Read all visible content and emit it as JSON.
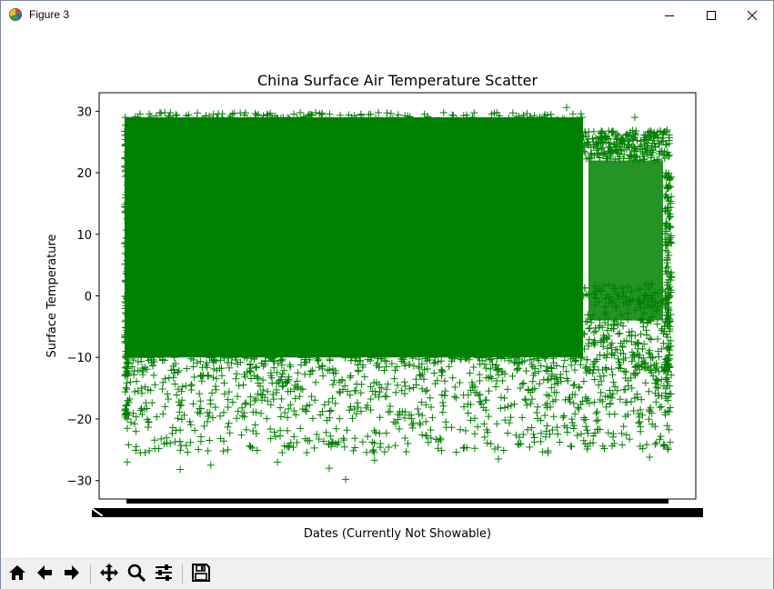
{
  "window": {
    "title": "Figure 3",
    "controls": [
      "minimize",
      "maximize",
      "close"
    ],
    "icons": {
      "app": "matplotlib-figure-icon",
      "minimize": "minimize-icon",
      "maximize": "maximize-icon",
      "close": "close-icon"
    }
  },
  "toolbar": {
    "buttons": [
      {
        "name": "home-button",
        "icon": "home-icon"
      },
      {
        "name": "back-button",
        "icon": "arrow-left-icon"
      },
      {
        "name": "forward-button",
        "icon": "arrow-right-icon"
      },
      {
        "name": "pan-button",
        "icon": "move-icon"
      },
      {
        "name": "zoom-button",
        "icon": "magnifier-icon"
      },
      {
        "name": "configure-subplots-button",
        "icon": "sliders-icon"
      },
      {
        "name": "save-button",
        "icon": "floppy-disk-icon"
      }
    ]
  },
  "chart_data": {
    "type": "scatter",
    "title": "China Surface Air Temperature Scatter",
    "xlabel": "Dates (Currently Not Showable)",
    "ylabel": "Surface Temperature",
    "ylim": [
      -33,
      33
    ],
    "yticks": [
      30,
      20,
      10,
      0,
      -10,
      -20,
      -30
    ],
    "xticks_note": "",
    "marker": "+",
    "color": "#008000",
    "grid": false,
    "legend": "none",
    "x_range": [
      0,
      100
    ],
    "dense_region": {
      "main_block": {
        "x": [
          0,
          84
        ],
        "y_top": 29,
        "y_dense_bottom": -10
      },
      "tail_block": {
        "x": [
          84,
          100
        ],
        "y_top": 27,
        "y_dense_bottom": -12
      }
    },
    "outlier_points": [
      {
        "x": 0.5,
        "y": -27.0
      },
      {
        "x": 10.2,
        "y": -28.2
      },
      {
        "x": 15.8,
        "y": -27.5
      },
      {
        "x": 28.0,
        "y": -27.0
      },
      {
        "x": 37.5,
        "y": -28.0
      },
      {
        "x": 40.5,
        "y": -29.8
      },
      {
        "x": 45.8,
        "y": -26.7
      },
      {
        "x": 68.5,
        "y": -26.5
      },
      {
        "x": 96.2,
        "y": -26.2
      },
      {
        "x": 81.0,
        "y": 30.6
      },
      {
        "x": 93.5,
        "y": 29.0
      }
    ]
  }
}
